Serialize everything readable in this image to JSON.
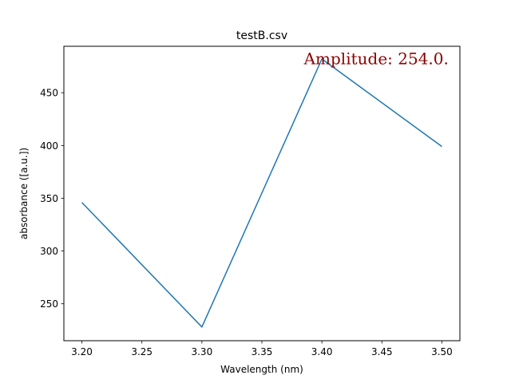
{
  "chart_data": {
    "type": "line",
    "title": "testB.csv",
    "xlabel": "Wavelength (nm)",
    "ylabel": "absorbance ([a.u.])",
    "x": [
      3.2,
      3.3,
      3.4,
      3.5
    ],
    "series": [
      {
        "values": [
          346,
          228,
          482,
          399
        ],
        "color": "#1f77b4"
      }
    ],
    "xlim": [
      3.185,
      3.515
    ],
    "ylim": [
      215,
      494
    ],
    "xticks": [
      3.2,
      3.25,
      3.3,
      3.35,
      3.4,
      3.45,
      3.5
    ],
    "xtick_labels": [
      "3.20",
      "3.25",
      "3.30",
      "3.35",
      "3.40",
      "3.45",
      "3.50"
    ],
    "yticks": [
      250,
      300,
      350,
      400,
      450
    ],
    "ytick_labels": [
      "250",
      "300",
      "350",
      "400",
      "450"
    ],
    "grid": false,
    "annotation": {
      "text": "Amplitude: 254.0.",
      "x": 3.385,
      "y": 477,
      "color": "#8b0000"
    }
  }
}
